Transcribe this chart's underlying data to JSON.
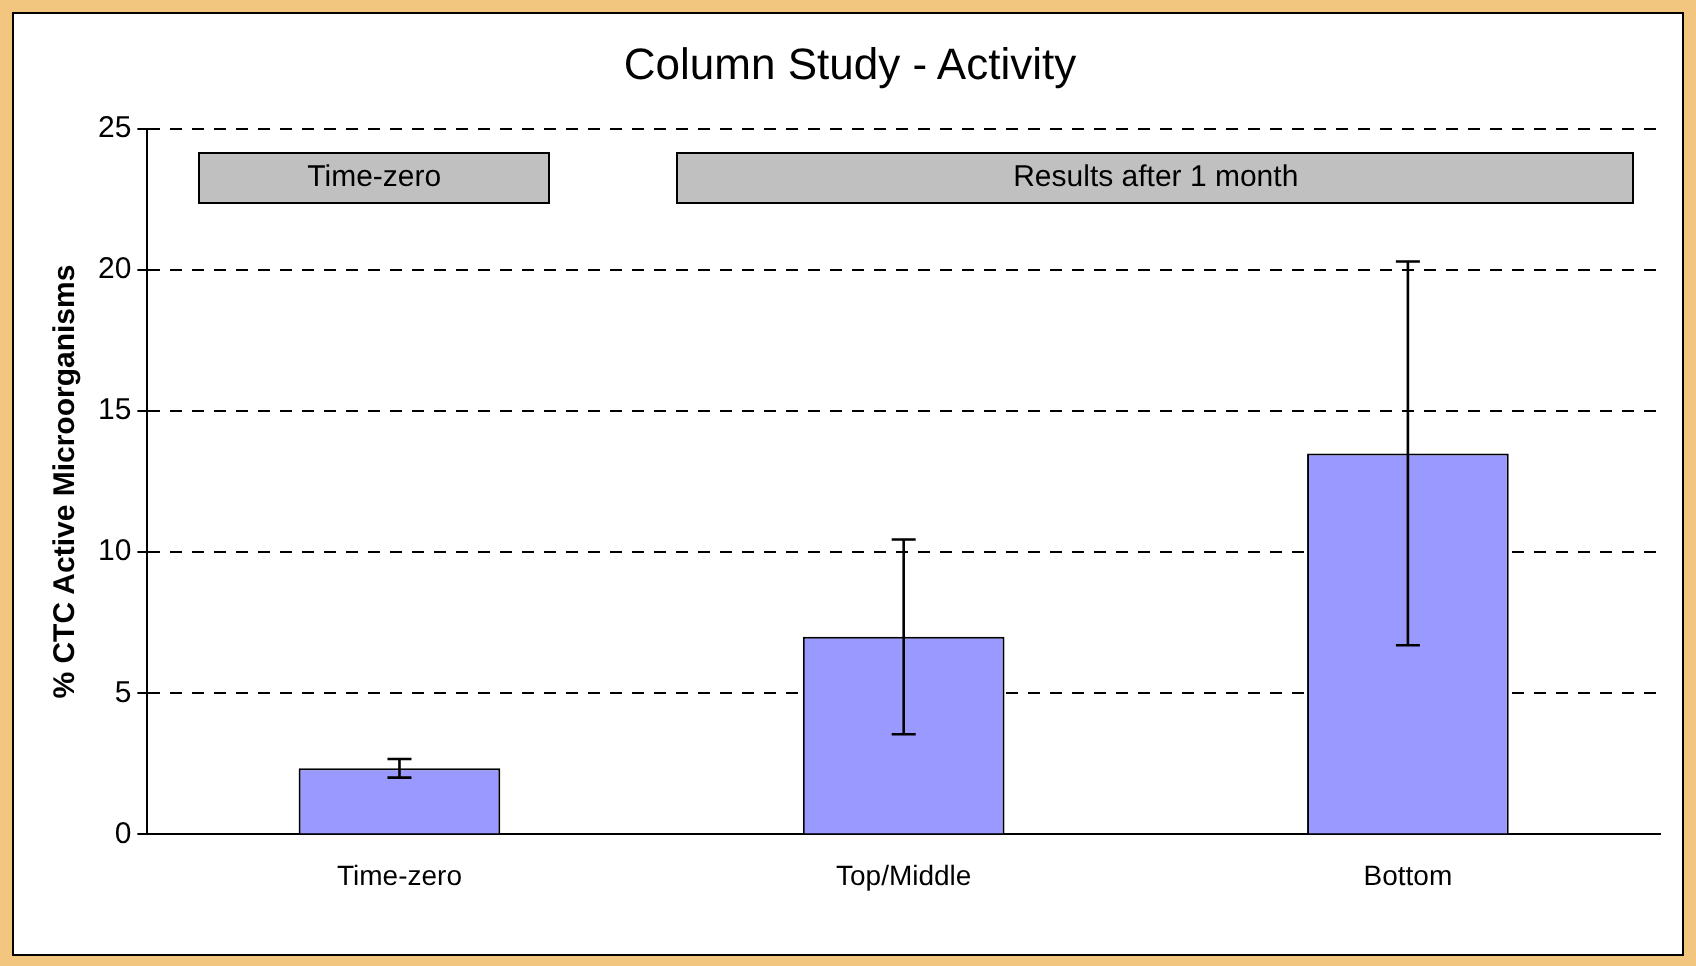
{
  "chart_data": {
    "type": "bar",
    "title": "Column Study - Activity",
    "ylabel": "% CTC Active Microorganisms",
    "categories": [
      "Time-zero",
      "Top/Middle",
      "Bottom"
    ],
    "values": [
      2.34,
      7.0,
      13.5
    ],
    "errors": [
      0.33,
      3.45,
      6.8
    ],
    "color": "#9999ff",
    "ylim": [
      0,
      25
    ],
    "yticks": [
      0,
      5,
      10,
      15,
      20,
      25
    ],
    "grid": "y",
    "legend": false,
    "annotations": [
      "Time-zero",
      "Results after 1 month"
    ]
  }
}
